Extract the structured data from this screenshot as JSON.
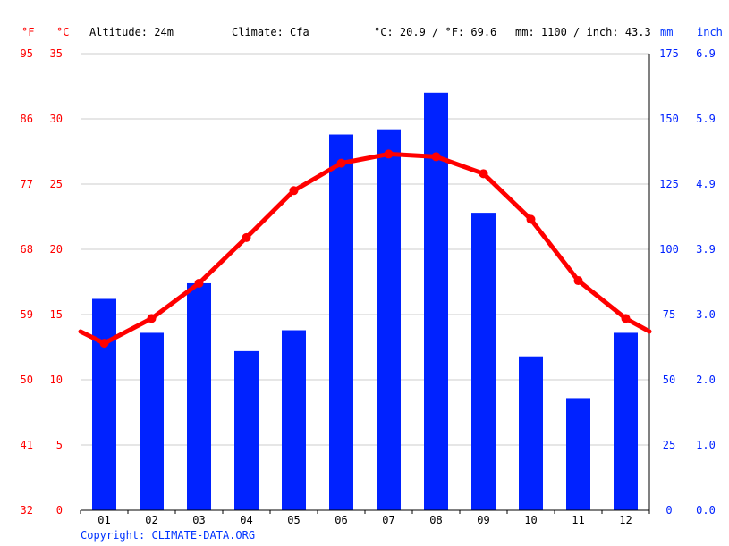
{
  "header": {
    "unit_f": "°F",
    "unit_c": "°C",
    "altitude": "Altitude: 24m",
    "climate": "Climate: Cfa",
    "avg_temp": "°C: 20.9 / °F: 69.6",
    "precip": "mm: 1100 / inch: 43.3",
    "unit_mm": "mm",
    "unit_inch": "inch"
  },
  "copyright": "Copyright: CLIMATE-DATA.ORG",
  "colors": {
    "temp": "#ff0000",
    "precip": "#0022ff",
    "grid": "#cccccc"
  },
  "chart_data": {
    "type": "bar",
    "categories": [
      "01",
      "02",
      "03",
      "04",
      "05",
      "06",
      "07",
      "08",
      "09",
      "10",
      "11",
      "12"
    ],
    "series": [
      {
        "axis": "precipitation_mm",
        "type": "bar",
        "values": [
          81,
          68,
          87,
          61,
          69,
          144,
          146,
          160,
          114,
          59,
          43,
          68
        ]
      },
      {
        "axis": "temperature_c",
        "type": "line",
        "values": [
          12.8,
          14.7,
          17.4,
          20.9,
          24.5,
          26.6,
          27.3,
          27.1,
          25.8,
          22.3,
          17.6,
          14.7
        ],
        "edge_start": 13.7,
        "edge_end": 13.7
      }
    ],
    "axes": {
      "left_f_ticks": [
        "32",
        "41",
        "50",
        "59",
        "68",
        "77",
        "86",
        "95"
      ],
      "left_c_ticks": [
        "0",
        "5",
        "10",
        "15",
        "20",
        "25",
        "30",
        "35"
      ],
      "right_mm_ticks": [
        "0",
        "25",
        "50",
        "75",
        "100",
        "125",
        "150",
        "175"
      ],
      "right_inch_ticks": [
        "0.0",
        "1.0",
        "2.0",
        "3.0",
        "3.9",
        "4.9",
        "5.9",
        "6.9"
      ],
      "c_range": [
        0,
        35
      ],
      "mm_range": [
        0,
        175
      ]
    },
    "grid": true
  }
}
